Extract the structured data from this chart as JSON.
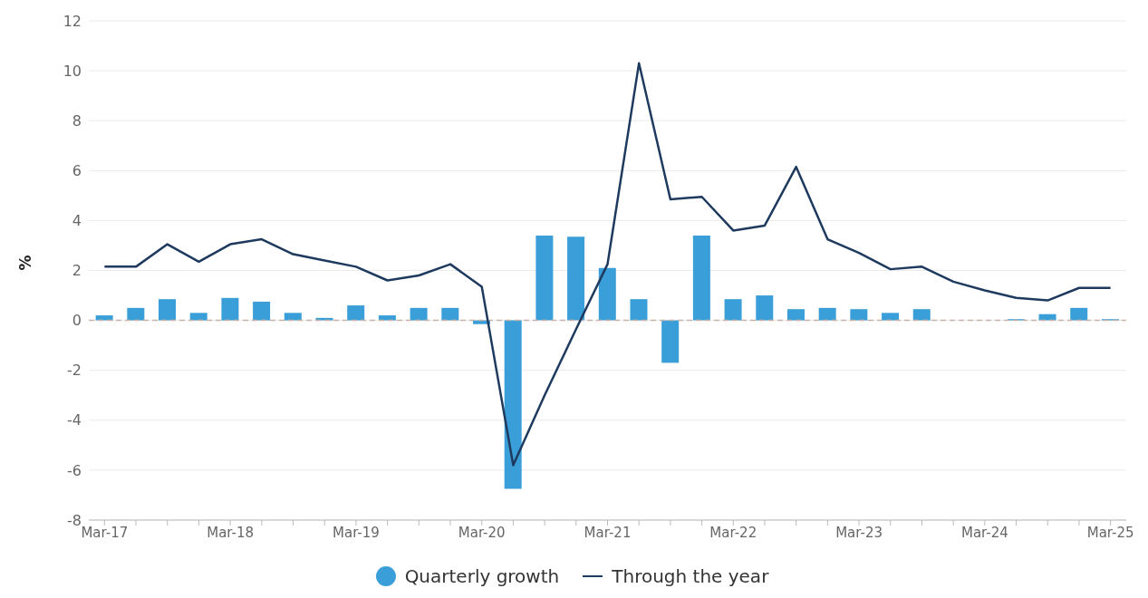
{
  "chart_data": {
    "type": "bar",
    "ylabel": "%",
    "categories": [
      "Mar-17",
      null,
      null,
      null,
      "Mar-18",
      null,
      null,
      null,
      "Mar-19",
      null,
      null,
      null,
      "Mar-20",
      null,
      null,
      null,
      "Mar-21",
      null,
      null,
      null,
      "Mar-22",
      null,
      null,
      null,
      "Mar-23",
      null,
      null,
      null,
      "Mar-24",
      null,
      null,
      null,
      "Mar-25"
    ],
    "series": [
      {
        "name": "Quarterly growth",
        "color": "#3a9fd8",
        "values": [
          0.2,
          0.5,
          0.85,
          0.3,
          0.9,
          0.75,
          0.3,
          0.1,
          0.6,
          0.2,
          0.5,
          0.5,
          -0.15,
          -6.75,
          3.4,
          3.35,
          2.1,
          0.85,
          -1.7,
          3.4,
          0.85,
          1.0,
          0.45,
          0.5,
          0.45,
          0.3,
          0.45,
          0.0,
          0.0,
          0.05,
          0.25,
          0.5,
          0.05
        ]
      },
      {
        "name": "Through the year",
        "type": "line",
        "color": "#1f3a5f",
        "values": [
          2.15,
          2.15,
          3.05,
          2.35,
          3.05,
          3.25,
          2.65,
          2.4,
          2.15,
          1.6,
          1.8,
          2.25,
          1.35,
          -5.8,
          -3.0,
          -0.35,
          2.25,
          10.3,
          4.85,
          4.95,
          3.6,
          3.8,
          6.15,
          3.25,
          2.7,
          2.05,
          2.15,
          1.55,
          1.2,
          0.9,
          0.8,
          1.3,
          1.3
        ]
      }
    ],
    "ylim": [
      -8,
      12
    ],
    "yticks": [
      -8,
      -6,
      -4,
      -2,
      0,
      2,
      4,
      6,
      8,
      10,
      12
    ],
    "grid": "y",
    "legend": "bottom",
    "ref_lines": [
      {
        "axis": "y",
        "value": 0,
        "color": "#c8b4aa",
        "line_style": "dashed"
      }
    ]
  }
}
